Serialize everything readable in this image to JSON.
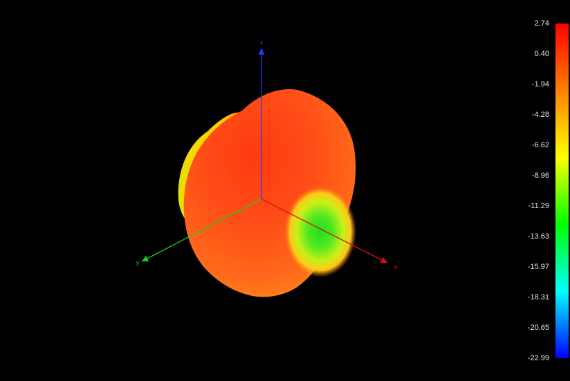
{
  "chart_data": {
    "type": "3d-radiation-pattern",
    "colorbar": {
      "ticks": [
        "2.74",
        "0.40",
        "-1.94",
        "-4.28",
        "-6.62",
        "-8.96",
        "-11.29",
        "-13.63",
        "-15.97",
        "-18.31",
        "-20.65",
        "-22.99"
      ],
      "max": 2.74,
      "min": -22.99,
      "colors_top_to_bottom": [
        "#ff0000",
        "#ff8000",
        "#ffff00",
        "#00ff00",
        "#00ffff",
        "#0000ff"
      ]
    },
    "axes": [
      {
        "label": "z",
        "color": "#1f3bff"
      },
      {
        "label": "y",
        "color": "#19d219"
      },
      {
        "label": "x",
        "color": "#e01010"
      }
    ]
  }
}
